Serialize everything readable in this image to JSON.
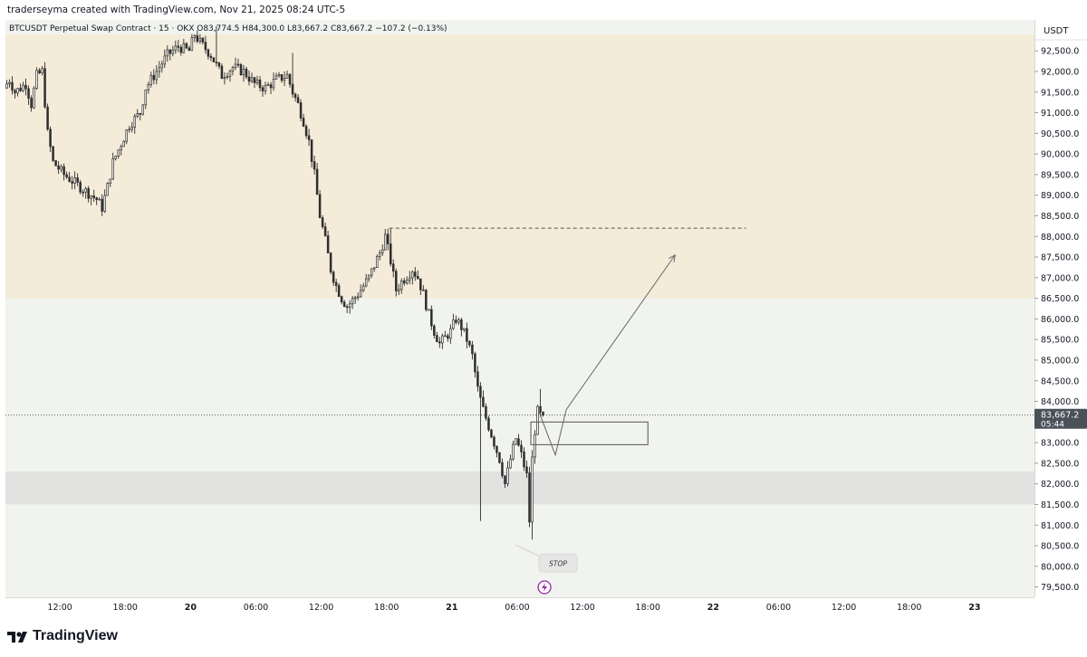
{
  "header": {
    "credit": "traderseyma created with TradingView.com, Nov 21, 2025 08:24 UTC-5"
  },
  "legend": {
    "symbol": "BTCUSDT Perpetual Swap Contract · 15 · OKX",
    "open": "O83,774.5",
    "high": "H84,300.0",
    "low": "L83,667.2",
    "close": "C83,667.2",
    "change": "−107.2 (−0.13%)"
  },
  "price_axis": {
    "currency": "USDT",
    "current_price": "83,667.2",
    "countdown": "05:44"
  },
  "annotations": {
    "stop_label": "STOP"
  },
  "branding": {
    "logo_text": "TradingView"
  },
  "colors": {
    "background": "#f1f3ee",
    "supply_zone": "#f4ecd9",
    "demand_zone": "#e2e3e1",
    "candle": "#2e2e2e",
    "price_label_bg": "#4a5058",
    "alert_icon": "#9c27b0"
  },
  "chart_data": {
    "type": "candlestick",
    "title": "BTCUSDT Perpetual Swap Contract · 15 · OKX",
    "y_unit": "USDT",
    "ylim": [
      79250,
      93250
    ],
    "yticks": [
      79500,
      80000,
      80500,
      81000,
      81500,
      82000,
      82500,
      83000,
      83500,
      84000,
      84500,
      85000,
      85500,
      86000,
      86500,
      87000,
      87500,
      88000,
      88500,
      89000,
      89500,
      90000,
      90500,
      91000,
      91500,
      92000,
      92500
    ],
    "ytick_labels": [
      "79,500.0",
      "80,000.0",
      "80,500.0",
      "81,000.0",
      "81,500.0",
      "82,000.0",
      "82,500.0",
      "83,000.0",
      "83,500.0",
      "84,000.0",
      "84,500.0",
      "85,000.0",
      "85,500.0",
      "86,000.0",
      "86,500.0",
      "87,000.0",
      "87,500.0",
      "88,000.0",
      "88,500.0",
      "89,000.0",
      "89,500.0",
      "90,000.0",
      "90,500.0",
      "91,000.0",
      "91,500.0",
      "92,000.0",
      "92,500.0"
    ],
    "x_start": "2025-11-19T07:00",
    "x_end": "2025-11-23T05:30",
    "xticks": [
      {
        "t": "2025-11-19T12:00",
        "label": "12:00",
        "bold": false
      },
      {
        "t": "2025-11-19T18:00",
        "label": "18:00",
        "bold": false
      },
      {
        "t": "2025-11-20T00:00",
        "label": "20",
        "bold": true
      },
      {
        "t": "2025-11-20T06:00",
        "label": "06:00",
        "bold": false
      },
      {
        "t": "2025-11-20T12:00",
        "label": "12:00",
        "bold": false
      },
      {
        "t": "2025-11-20T18:00",
        "label": "18:00",
        "bold": false
      },
      {
        "t": "2025-11-21T00:00",
        "label": "21",
        "bold": true
      },
      {
        "t": "2025-11-21T06:00",
        "label": "06:00",
        "bold": false
      },
      {
        "t": "2025-11-21T12:00",
        "label": "12:00",
        "bold": false
      },
      {
        "t": "2025-11-21T18:00",
        "label": "18:00",
        "bold": false
      },
      {
        "t": "2025-11-22T00:00",
        "label": "22",
        "bold": true
      },
      {
        "t": "2025-11-22T06:00",
        "label": "06:00",
        "bold": false
      },
      {
        "t": "2025-11-22T12:00",
        "label": "12:00",
        "bold": false
      },
      {
        "t": "2025-11-22T18:00",
        "label": "18:00",
        "bold": false
      },
      {
        "t": "2025-11-23T00:00",
        "label": "23",
        "bold": true
      }
    ],
    "last_candle_time": "2025-11-21T08:15",
    "candle_interval_minutes": 15,
    "price_path": [
      [
        "2025-11-19T07:00",
        91600
      ],
      [
        "2025-11-19T07:30",
        91800
      ],
      [
        "2025-11-19T08:00",
        91500
      ],
      [
        "2025-11-19T09:00",
        91700
      ],
      [
        "2025-11-19T09:30",
        91200
      ],
      [
        "2025-11-19T10:00",
        91900
      ],
      [
        "2025-11-19T10:30",
        92000
      ],
      [
        "2025-11-19T11:00",
        90500
      ],
      [
        "2025-11-19T11:30",
        89800
      ],
      [
        "2025-11-19T12:30",
        89500
      ],
      [
        "2025-11-19T13:30",
        89300
      ],
      [
        "2025-11-19T14:30",
        89100
      ],
      [
        "2025-11-19T15:30",
        88900
      ],
      [
        "2025-11-19T16:00",
        88700
      ],
      [
        "2025-11-19T16:30",
        89200
      ],
      [
        "2025-11-19T17:00",
        89800
      ],
      [
        "2025-11-19T18:00",
        90400
      ],
      [
        "2025-11-19T18:30",
        90700
      ],
      [
        "2025-11-19T19:30",
        91000
      ],
      [
        "2025-11-19T20:00",
        91600
      ],
      [
        "2025-11-19T21:00",
        92000
      ],
      [
        "2025-11-19T22:00",
        92400
      ],
      [
        "2025-11-19T23:00",
        92600
      ],
      [
        "2025-11-20T00:00",
        92500
      ],
      [
        "2025-11-20T00:30",
        92900
      ],
      [
        "2025-11-20T01:00",
        92700
      ],
      [
        "2025-11-20T02:00",
        92400
      ],
      [
        "2025-11-20T03:00",
        91900
      ],
      [
        "2025-11-20T04:00",
        92100
      ],
      [
        "2025-11-20T05:00",
        92000
      ],
      [
        "2025-11-20T06:00",
        91700
      ],
      [
        "2025-11-20T07:00",
        91600
      ],
      [
        "2025-11-20T08:00",
        91800
      ],
      [
        "2025-11-20T09:00",
        91900
      ],
      [
        "2025-11-20T09:30",
        91500
      ],
      [
        "2025-11-20T10:00",
        91200
      ],
      [
        "2025-11-20T10:30",
        90800
      ],
      [
        "2025-11-20T11:00",
        90300
      ],
      [
        "2025-11-20T11:30",
        89500
      ],
      [
        "2025-11-20T12:00",
        88500
      ],
      [
        "2025-11-20T12:30",
        87900
      ],
      [
        "2025-11-20T13:00",
        87200
      ],
      [
        "2025-11-20T13:30",
        86800
      ],
      [
        "2025-11-20T14:00",
        86500
      ],
      [
        "2025-11-20T14:30",
        86300
      ],
      [
        "2025-11-20T15:30",
        86600
      ],
      [
        "2025-11-20T16:30",
        87000
      ],
      [
        "2025-11-20T17:30",
        87600
      ],
      [
        "2025-11-20T18:00",
        88000
      ],
      [
        "2025-11-20T18:30",
        87400
      ],
      [
        "2025-11-20T19:00",
        86700
      ],
      [
        "2025-11-20T19:30",
        86900
      ],
      [
        "2025-11-20T20:30",
        87200
      ],
      [
        "2025-11-20T21:00",
        87000
      ],
      [
        "2025-11-20T21:30",
        86600
      ],
      [
        "2025-11-20T22:00",
        86100
      ],
      [
        "2025-11-20T22:30",
        85700
      ],
      [
        "2025-11-20T23:00",
        85400
      ],
      [
        "2025-11-21T00:00",
        85700
      ],
      [
        "2025-11-21T00:30",
        86000
      ],
      [
        "2025-11-21T01:00",
        85800
      ],
      [
        "2025-11-21T01:30",
        85500
      ],
      [
        "2025-11-21T02:00",
        85100
      ],
      [
        "2025-11-21T02:30",
        84300
      ],
      [
        "2025-11-21T03:00",
        83800
      ],
      [
        "2025-11-21T03:30",
        83400
      ],
      [
        "2025-11-21T04:00",
        83000
      ],
      [
        "2025-11-21T04:30",
        82600
      ],
      [
        "2025-11-21T05:00",
        82000
      ],
      [
        "2025-11-21T05:30",
        82600
      ],
      [
        "2025-11-21T06:00",
        83100
      ],
      [
        "2025-11-21T06:30",
        82700
      ],
      [
        "2025-11-21T07:00",
        82200
      ],
      [
        "2025-11-21T07:15",
        81100
      ],
      [
        "2025-11-21T07:30",
        82600
      ],
      [
        "2025-11-21T07:45",
        83300
      ],
      [
        "2025-11-21T08:00",
        83750
      ],
      [
        "2025-11-21T08:15",
        83667
      ]
    ],
    "notable_wicks": [
      {
        "t": "2025-11-20T02:15",
        "high": 93100
      },
      {
        "t": "2025-11-20T09:15",
        "high": 92450
      },
      {
        "t": "2025-11-20T18:15",
        "high": 88200
      },
      {
        "t": "2025-11-21T02:30",
        "low": 81100
      },
      {
        "t": "2025-11-21T07:15",
        "low": 80650
      },
      {
        "t": "2025-11-21T08:00",
        "high": 84300
      }
    ],
    "current_price": 83667.2,
    "zones": [
      {
        "name": "supply",
        "from": 86500,
        "to": 92900
      },
      {
        "name": "demand",
        "from": 81500,
        "to": 82300
      }
    ],
    "drawings": {
      "dashed_level": {
        "price": 88200,
        "from": "2025-11-20T18:15",
        "to": "2025-11-22T03:00"
      },
      "rectangle": {
        "from": "2025-11-21T07:15",
        "to": "2025-11-21T18:00",
        "top": 83500,
        "bottom": 82950
      },
      "projection_path": [
        [
          "2025-11-21T08:00",
          83750
        ],
        [
          "2025-11-21T09:30",
          82700
        ],
        [
          "2025-11-21T10:30",
          83800
        ],
        [
          "2025-11-21T20:30",
          87550
        ]
      ]
    },
    "stop_annotation": {
      "t": "2025-11-21T09:00",
      "price": 80300
    }
  }
}
